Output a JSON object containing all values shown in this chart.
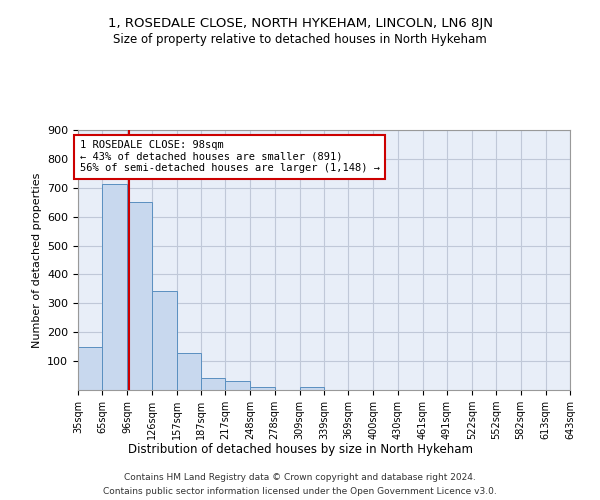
{
  "title": "1, ROSEDALE CLOSE, NORTH HYKEHAM, LINCOLN, LN6 8JN",
  "subtitle": "Size of property relative to detached houses in North Hykeham",
  "xlabel": "Distribution of detached houses by size in North Hykeham",
  "ylabel": "Number of detached properties",
  "footer_line1": "Contains HM Land Registry data © Crown copyright and database right 2024.",
  "footer_line2": "Contains public sector information licensed under the Open Government Licence v3.0.",
  "annotation_line1": "1 ROSEDALE CLOSE: 98sqm",
  "annotation_line2": "← 43% of detached houses are smaller (891)",
  "annotation_line3": "56% of semi-detached houses are larger (1,148) →",
  "property_line_x": 98,
  "bar_color": "#c8d8ee",
  "bar_edge_color": "#5a8fc0",
  "vline_color": "#cc0000",
  "annotation_box_color": "#cc0000",
  "bg_color": "#e8eef8",
  "grid_color": "#c0c8d8",
  "bins": [
    35,
    65,
    96,
    126,
    157,
    187,
    217,
    248,
    278,
    309,
    339,
    369,
    400,
    430,
    461,
    491,
    522,
    552,
    582,
    613,
    643
  ],
  "counts": [
    150,
    713,
    652,
    343,
    127,
    40,
    30,
    12,
    0,
    10,
    0,
    0,
    0,
    0,
    0,
    0,
    0,
    0,
    0,
    0
  ],
  "ylim": [
    0,
    900
  ],
  "yticks": [
    0,
    100,
    200,
    300,
    400,
    500,
    600,
    700,
    800,
    900
  ],
  "tick_labels": [
    "35sqm",
    "65sqm",
    "96sqm",
    "126sqm",
    "157sqm",
    "187sqm",
    "217sqm",
    "248sqm",
    "278sqm",
    "309sqm",
    "339sqm",
    "369sqm",
    "400sqm",
    "430sqm",
    "461sqm",
    "491sqm",
    "522sqm",
    "552sqm",
    "582sqm",
    "613sqm",
    "643sqm"
  ]
}
